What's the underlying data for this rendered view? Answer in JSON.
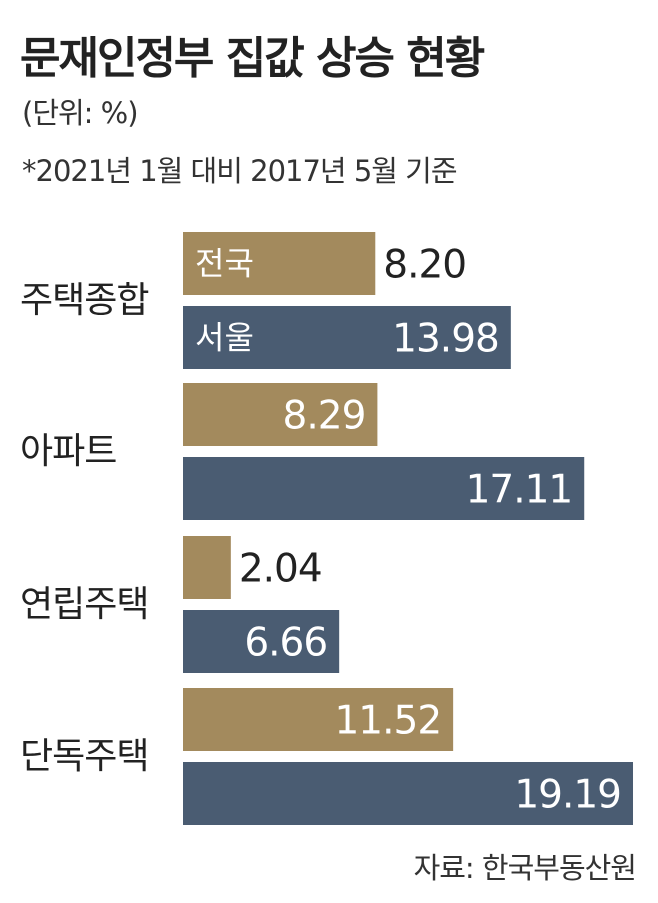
{
  "header": {
    "title": "문재인정부 집값 상승 현황",
    "unit": "(단위: %)",
    "note": "*2021년 1월 대비 2017년 5월 기준"
  },
  "footer": {
    "source": "자료: 한국부동산원"
  },
  "chart_data": {
    "type": "bar",
    "orientation": "horizontal",
    "categories": [
      "주택종합",
      "아파트",
      "연립주택",
      "단독주택"
    ],
    "series": [
      {
        "name": "전국",
        "values": [
          8.2,
          8.29,
          2.04,
          11.52
        ],
        "labels": [
          "8.20",
          "8.29",
          "2.04",
          "11.52"
        ],
        "color": "#A38A5D"
      },
      {
        "name": "서울",
        "values": [
          13.98,
          17.11,
          6.66,
          19.19
        ],
        "labels": [
          "13.98",
          "17.11",
          "6.66",
          "19.19"
        ],
        "color": "#4A5C72"
      }
    ],
    "legend": "inside-first-bars",
    "grid": false
  }
}
